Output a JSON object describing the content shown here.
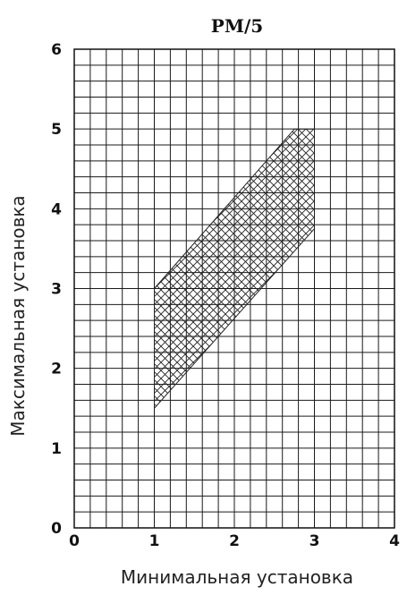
{
  "chart_data": {
    "type": "area",
    "title": "PM/5",
    "xlabel": "Минимальная установка",
    "ylabel": "Максимальная установка",
    "xlim": [
      0,
      4
    ],
    "ylim": [
      0,
      6
    ],
    "x_ticks": [
      "0",
      "1",
      "2",
      "3",
      "4"
    ],
    "y_ticks": [
      "0",
      "1",
      "2",
      "3",
      "4",
      "5",
      "6"
    ],
    "grid_step_x": 0.2,
    "grid_step_y": 0.2,
    "grid": true,
    "region": {
      "fill": "crosshatch",
      "polygon": [
        {
          "x": 1.0,
          "y": 1.5
        },
        {
          "x": 1.0,
          "y": 3.0
        },
        {
          "x": 2.75,
          "y": 5.0
        },
        {
          "x": 3.0,
          "y": 5.0
        },
        {
          "x": 3.0,
          "y": 3.75
        }
      ]
    }
  }
}
